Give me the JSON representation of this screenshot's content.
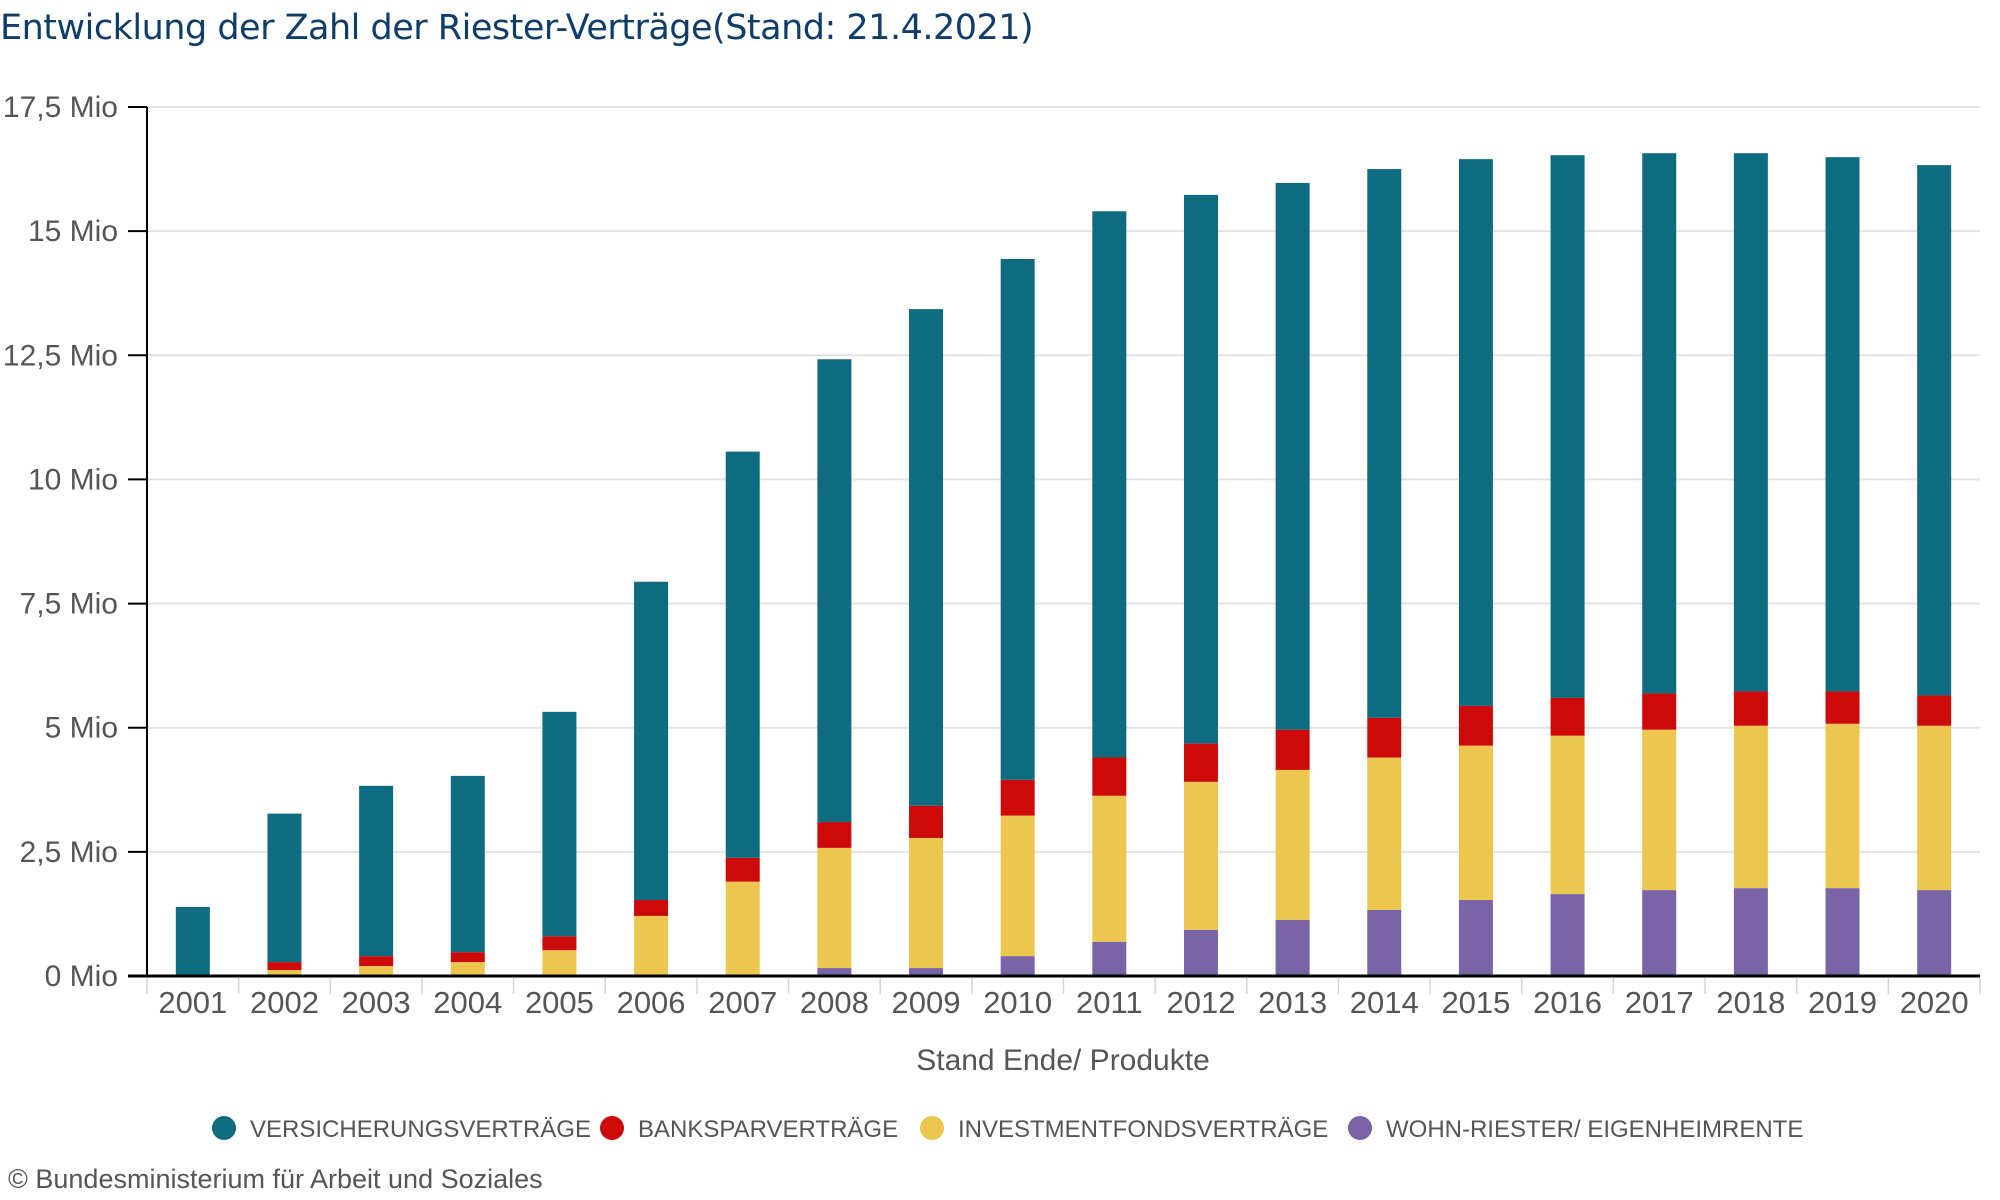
{
  "chart_title": "Entwicklung der Zahl der Riester-Verträge(Stand: 21.4.2021)",
  "credit": "© Bundesministerium für Arbeit und Soziales",
  "chart_data": {
    "type": "bar",
    "stacked": true,
    "title": "Entwicklung der Zahl der Riester-Verträge(Stand: 21.4.2021)",
    "xlabel": "Stand Ende/ Produkte",
    "ylabel": "",
    "unit": "Mio",
    "ylim": [
      0,
      17.5
    ],
    "yticks": [
      0,
      2.5,
      5,
      7.5,
      10,
      12.5,
      15,
      17.5
    ],
    "ytick_labels": [
      "0 Mio",
      "2,5 Mio",
      "5 Mio",
      "7,5 Mio",
      "10 Mio",
      "12,5 Mio",
      "15 Mio",
      "17,5 Mio"
    ],
    "grid": true,
    "legend_position": "bottom-center",
    "categories": [
      "2001",
      "2002",
      "2003",
      "2004",
      "2005",
      "2006",
      "2007",
      "2008",
      "2009",
      "2010",
      "2011",
      "2012",
      "2013",
      "2014",
      "2015",
      "2016",
      "2017",
      "2018",
      "2019",
      "2020"
    ],
    "series": [
      {
        "name": "WOHN-RIESTER/ EIGENHEIMRENTE",
        "color": "#7a64a8",
        "values": [
          0,
          0,
          0,
          0,
          0,
          0,
          0,
          0.16,
          0.16,
          0.4,
          0.69,
          0.93,
          1.13,
          1.33,
          1.53,
          1.65,
          1.73,
          1.77,
          1.77,
          1.73
        ]
      },
      {
        "name": "INVESTMENTFONDSVERTRÄGE",
        "color": "#ecc64e",
        "values": [
          0,
          0.12,
          0.2,
          0.28,
          0.52,
          1.21,
          1.9,
          2.42,
          2.62,
          2.83,
          2.94,
          2.98,
          3.02,
          3.07,
          3.11,
          3.19,
          3.23,
          3.27,
          3.31,
          3.31
        ]
      },
      {
        "name": "BANKSPARVERTRÄGE",
        "color": "#cc0a0a",
        "values": [
          0,
          0.16,
          0.2,
          0.2,
          0.28,
          0.32,
          0.48,
          0.52,
          0.65,
          0.72,
          0.77,
          0.77,
          0.81,
          0.8,
          0.8,
          0.76,
          0.73,
          0.69,
          0.65,
          0.61
        ]
      },
      {
        "name": "VERSICHERUNGSVERTRÄGE",
        "color": "#0e6b80",
        "values": [
          1.39,
          2.99,
          3.43,
          3.55,
          4.52,
          6.41,
          8.18,
          9.32,
          10.0,
          10.49,
          11.0,
          11.05,
          11.01,
          11.05,
          11.01,
          10.93,
          10.88,
          10.84,
          10.76,
          10.68
        ]
      }
    ],
    "totals": [
      1.39,
      3.27,
      3.83,
      4.03,
      5.32,
      7.94,
      10.56,
      12.42,
      13.43,
      14.44,
      15.4,
      15.73,
      15.97,
      16.25,
      16.45,
      16.53,
      16.57,
      16.57,
      16.49,
      16.33
    ],
    "legend_order": [
      "VERSICHERUNGSVERTRÄGE",
      "BANKSPARVERTRÄGE",
      "INVESTMENTFONDSVERTRÄGE",
      "WOHN-RIESTER/ EIGENHEIMRENTE"
    ]
  }
}
